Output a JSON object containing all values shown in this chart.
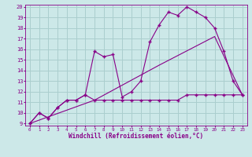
{
  "title": "",
  "xlabel": "Windchill (Refroidissement éolien,°C)",
  "ylabel": "",
  "bg_color": "#cce8e8",
  "grid_color": "#aacece",
  "line_color": "#880088",
  "xlim": [
    -0.5,
    23.5
  ],
  "ylim": [
    8.8,
    20.2
  ],
  "xticks": [
    0,
    1,
    2,
    3,
    4,
    5,
    6,
    7,
    8,
    9,
    10,
    11,
    12,
    13,
    14,
    15,
    16,
    17,
    18,
    19,
    20,
    21,
    22,
    23
  ],
  "yticks": [
    9,
    10,
    11,
    12,
    13,
    14,
    15,
    16,
    17,
    18,
    19,
    20
  ],
  "series_flat_x": [
    0,
    1,
    2,
    3,
    4,
    5,
    6,
    7,
    8,
    9,
    10,
    11,
    12,
    13,
    14,
    15,
    16,
    17,
    18,
    19,
    20,
    21,
    22,
    23
  ],
  "series_flat_y": [
    9.0,
    10.0,
    9.5,
    10.5,
    11.2,
    11.2,
    11.7,
    11.2,
    11.2,
    11.2,
    11.2,
    11.2,
    11.2,
    11.2,
    11.2,
    11.2,
    11.2,
    11.7,
    11.7,
    11.7,
    11.7,
    11.7,
    11.7,
    11.7
  ],
  "series_peak_x": [
    0,
    1,
    2,
    3,
    4,
    5,
    6,
    7,
    8,
    9,
    10,
    11,
    12,
    13,
    14,
    15,
    16,
    17,
    18,
    19,
    20,
    21,
    22,
    23
  ],
  "series_peak_y": [
    9.0,
    10.0,
    9.5,
    10.5,
    11.2,
    11.2,
    11.7,
    15.8,
    15.3,
    15.5,
    11.5,
    12.0,
    13.0,
    16.7,
    18.3,
    19.5,
    19.2,
    20.0,
    19.5,
    19.0,
    18.0,
    15.8,
    13.0,
    11.7
  ],
  "series_diag_x": [
    0,
    7,
    14,
    20,
    23
  ],
  "series_diag_y": [
    9.0,
    11.2,
    14.5,
    17.2,
    11.7
  ]
}
